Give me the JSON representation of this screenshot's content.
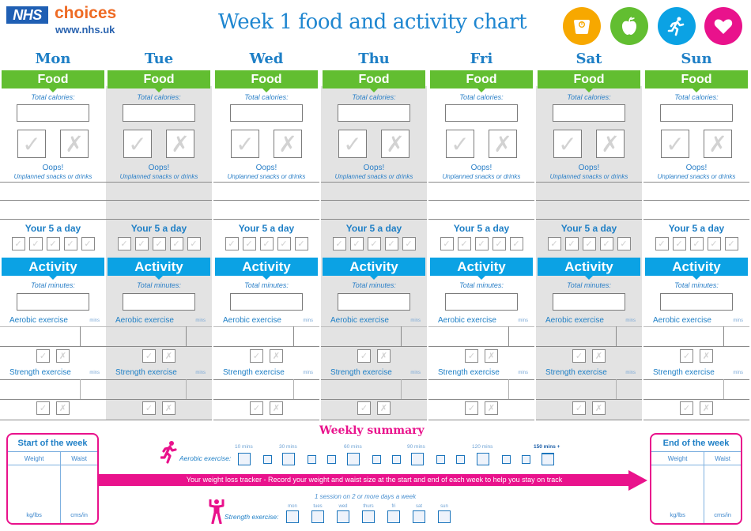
{
  "header": {
    "logo_badge": "NHS",
    "logo_word": "choices",
    "logo_url": "www.nhs.uk",
    "title": "Week 1 food and activity chart",
    "icons": [
      {
        "name": "weighing-scale-icon",
        "color": "#f7a800"
      },
      {
        "name": "apple-icon",
        "color": "#62be31"
      },
      {
        "name": "running-person-icon",
        "color": "#0ba2e4"
      },
      {
        "name": "heart-icon",
        "color": "#e9128c"
      }
    ]
  },
  "colors": {
    "food_green": "#62be31",
    "activity_blue": "#0ba2e4",
    "summary_pink": "#e9128c",
    "text_blue": "#1e7fc6",
    "grey_column": "#e3e3e3"
  },
  "labels": {
    "food": "Food",
    "total_calories": "Total calories:",
    "tick": "✓",
    "cross": "✗",
    "oops": "Oops!",
    "unplanned": "Unplanned snacks or drinks",
    "five_a_day": "Your 5 a day",
    "activity": "Activity",
    "total_minutes": "Total minutes:",
    "aerobic": "Aerobic exercise",
    "strength": "Strength exercise",
    "mins": "mins"
  },
  "days": [
    {
      "name": "Mon",
      "shaded": false
    },
    {
      "name": "Tue",
      "shaded": true
    },
    {
      "name": "Wed",
      "shaded": false
    },
    {
      "name": "Thu",
      "shaded": true
    },
    {
      "name": "Fri",
      "shaded": false
    },
    {
      "name": "Sat",
      "shaded": true
    },
    {
      "name": "Sun",
      "shaded": false
    }
  ],
  "summary": {
    "title": "Weekly summary",
    "start_card": {
      "title": "Start of the week",
      "col1": "Weight",
      "col2": "Waist",
      "unit1": "kg/lbs",
      "unit2": "cms/in"
    },
    "end_card": {
      "title": "End of the week",
      "col1": "Weight",
      "col2": "Waist",
      "unit1": "kg/lbs",
      "unit2": "cms/in"
    },
    "tracker_text": "Your weight loss tracker - Record your weight and waist size at the start and end of each week to help you stay on track",
    "aerobic_label": "Aerobic exercise:",
    "aerobic_milestones": [
      "10 mins",
      "30 mins",
      "60 mins",
      "90 mins",
      "120 mins",
      "150 mins +"
    ],
    "strength_label": "Strength exercise:",
    "strength_note": "1 session on 2 or more days a week",
    "strength_days": [
      "mon",
      "tues",
      "wed",
      "thurs",
      "fri",
      "sat",
      "sun"
    ]
  }
}
